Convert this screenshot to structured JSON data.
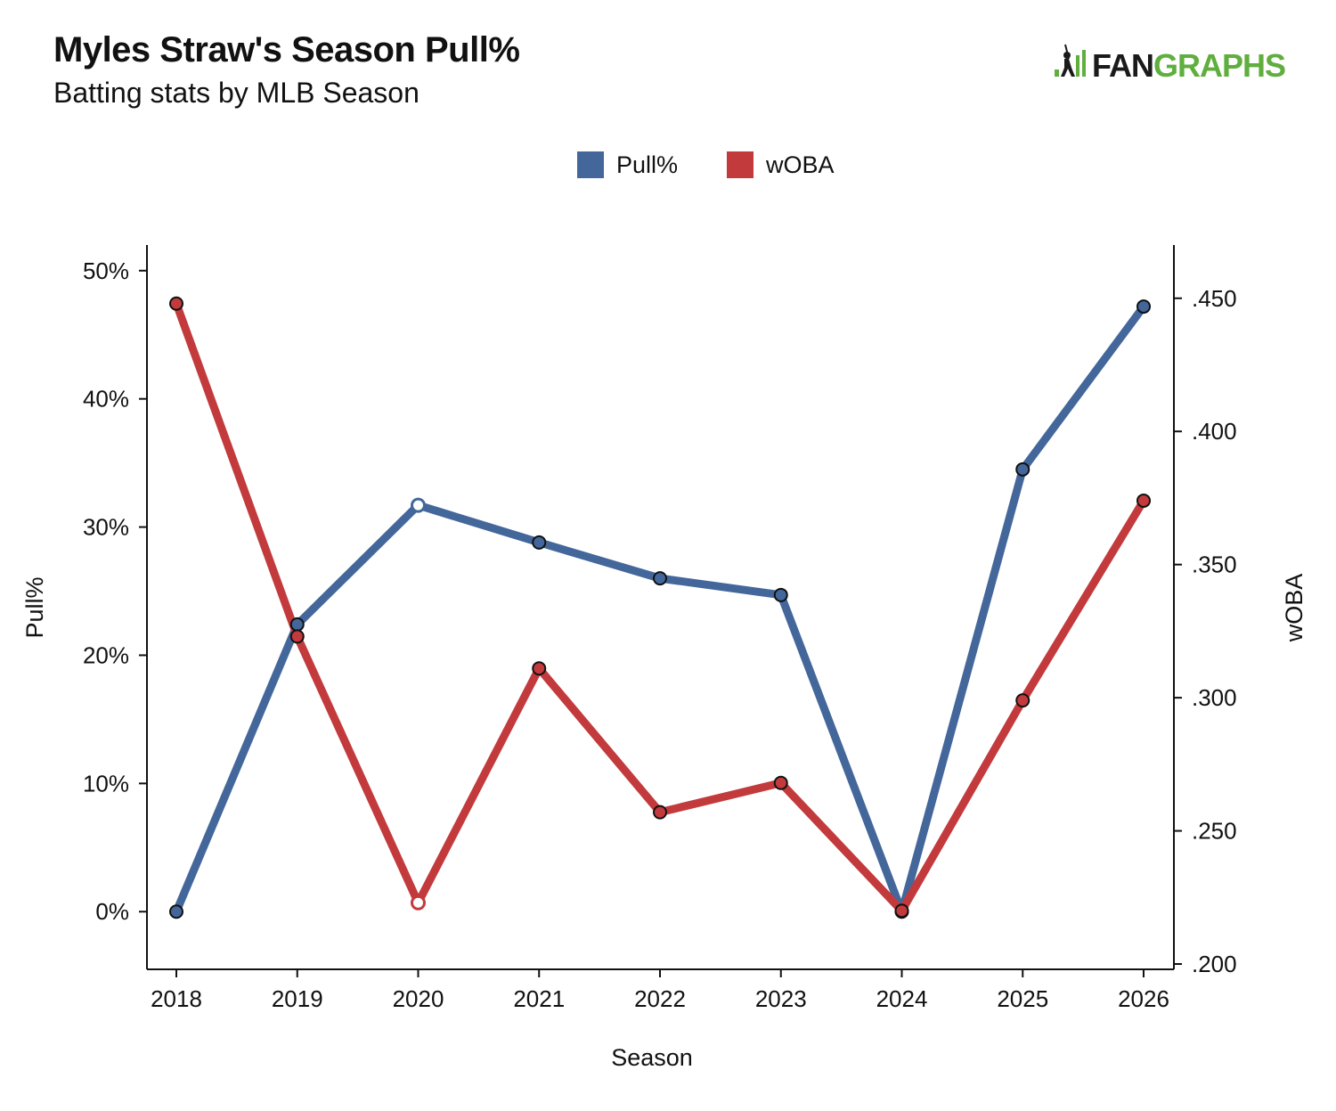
{
  "header": {
    "title": "Myles Straw's Season Pull%",
    "subtitle": "Batting stats by MLB Season",
    "logo_left": "FAN",
    "logo_right": "GRAPHS"
  },
  "colors": {
    "pull": "#43679a",
    "woba": "#c33a3d",
    "logo_dark": "#1a1a1a",
    "logo_green": "#5fae3e"
  },
  "chart_data": {
    "type": "line",
    "xlabel": "Season",
    "ylabel_left": "Pull%",
    "ylabel_right": "wOBA",
    "x": [
      2018,
      2019,
      2020,
      2021,
      2022,
      2023,
      2024,
      2025,
      2026
    ],
    "x_tick_labels": [
      "2018",
      "2019",
      "2020",
      "2021",
      "2022",
      "2023",
      "2024",
      "2025",
      "2026"
    ],
    "y_left_range": [
      -0.045,
      0.52
    ],
    "y_left_ticks": [
      0,
      0.1,
      0.2,
      0.3,
      0.4,
      0.5
    ],
    "y_left_tick_labels": [
      "0%",
      "10%",
      "20%",
      "30%",
      "40%",
      "50%"
    ],
    "y_right_range": [
      0.198,
      0.47
    ],
    "y_right_ticks": [
      0.2,
      0.25,
      0.3,
      0.35,
      0.4,
      0.45
    ],
    "y_right_tick_labels": [
      ".200",
      ".250",
      ".300",
      ".350",
      ".400",
      ".450"
    ],
    "legend_position": "top-center",
    "grid": false,
    "series": [
      {
        "name": "Pull%",
        "axis": "left",
        "values": [
          0.0,
          0.224,
          0.317,
          0.288,
          0.26,
          0.247,
          0.0,
          0.345,
          0.472
        ],
        "hollow_points": [
          2
        ]
      },
      {
        "name": "wOBA",
        "axis": "right",
        "values": [
          0.448,
          0.323,
          0.223,
          0.311,
          0.257,
          0.268,
          0.22,
          0.299,
          0.374
        ],
        "hollow_points": [
          2
        ]
      }
    ]
  }
}
